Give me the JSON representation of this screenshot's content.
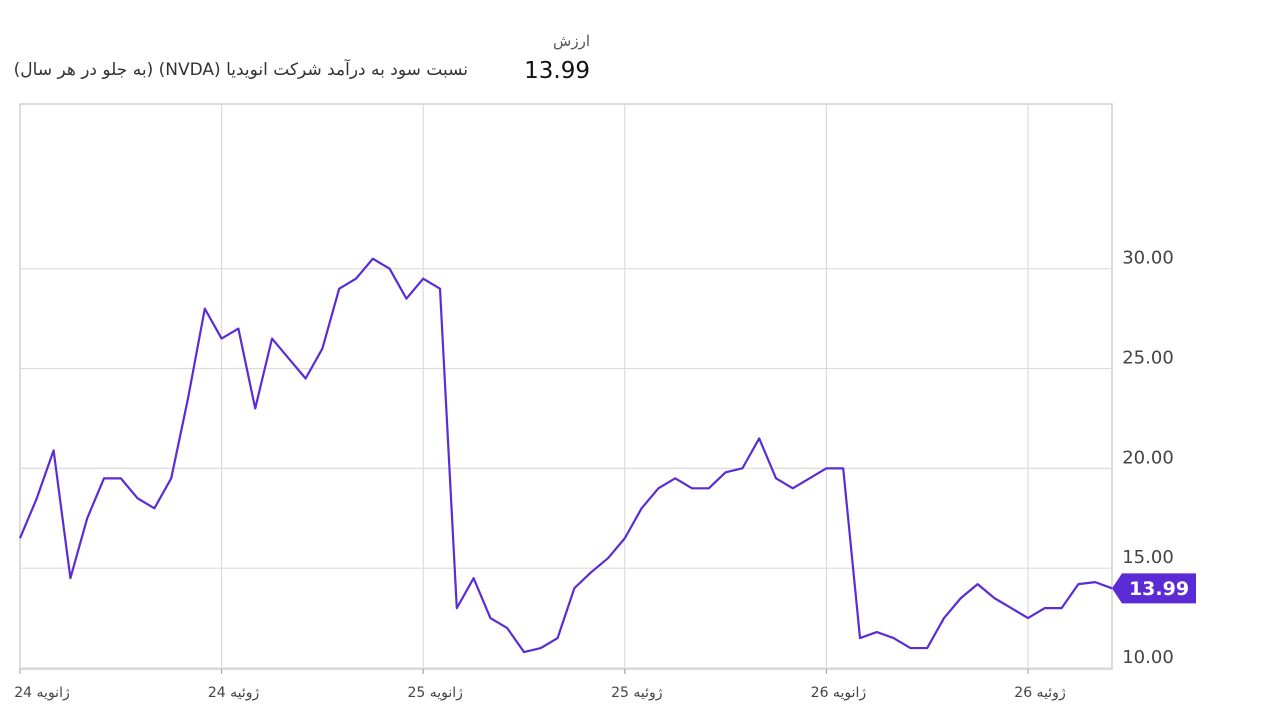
{
  "chart_data": {
    "type": "line",
    "title": "نسبت سود به درآمد شرکت انویدیا (NVDA) (به جلو در هر سال)",
    "value_heading": "ارزش",
    "current_value": 13.99,
    "categories": [
      "ژانویه 24",
      null,
      null,
      null,
      null,
      null,
      null,
      null,
      null,
      null,
      null,
      null,
      "ژوئیه 24",
      null,
      null,
      null,
      null,
      null,
      null,
      null,
      null,
      null,
      null,
      null,
      "ژانویه 25",
      null,
      null,
      null,
      null,
      null,
      null,
      null,
      null,
      null,
      null,
      null,
      "ژوئیه 25",
      null,
      null,
      null,
      null,
      null,
      null,
      null,
      null,
      null,
      null,
      null,
      "ژانویه 26",
      null,
      null,
      null,
      null,
      null,
      null,
      null,
      null,
      null,
      null,
      null,
      "ژوئیه 26",
      null,
      null,
      null,
      null,
      null
    ],
    "series": [
      {
        "name": "NVDA",
        "color": "#5b2bd6",
        "values": [
          16.5,
          18.5,
          20.9,
          14.5,
          17.5,
          19.5,
          19.5,
          18.5,
          18.0,
          19.5,
          23.5,
          28.0,
          26.5,
          27.0,
          23.0,
          26.5,
          25.5,
          24.5,
          26.0,
          29.0,
          29.5,
          30.5,
          30.0,
          28.5,
          29.5,
          29.0,
          13.0,
          14.5,
          12.5,
          12.0,
          10.8,
          11.0,
          11.5,
          14.0,
          14.8,
          15.5,
          16.5,
          18.0,
          19.0,
          19.5,
          19.0,
          19.0,
          19.8,
          20.0,
          21.5,
          19.5,
          19.0,
          19.5,
          20.0,
          20.0,
          11.5,
          11.8,
          11.5,
          11.0,
          11.0,
          12.5,
          13.5,
          14.2,
          13.5,
          13.0,
          12.5,
          13.0,
          13.0,
          14.2,
          14.3,
          13.99
        ]
      }
    ],
    "ylim": [
      9.95,
      38.25
    ],
    "yticks": [
      {
        "value": 10,
        "label": "10.00"
      },
      {
        "value": 15,
        "label": "15.00"
      },
      {
        "value": 20,
        "label": "20.00"
      },
      {
        "value": 25,
        "label": "25.00"
      },
      {
        "value": 30,
        "label": "30.00"
      }
    ],
    "grid": true
  }
}
